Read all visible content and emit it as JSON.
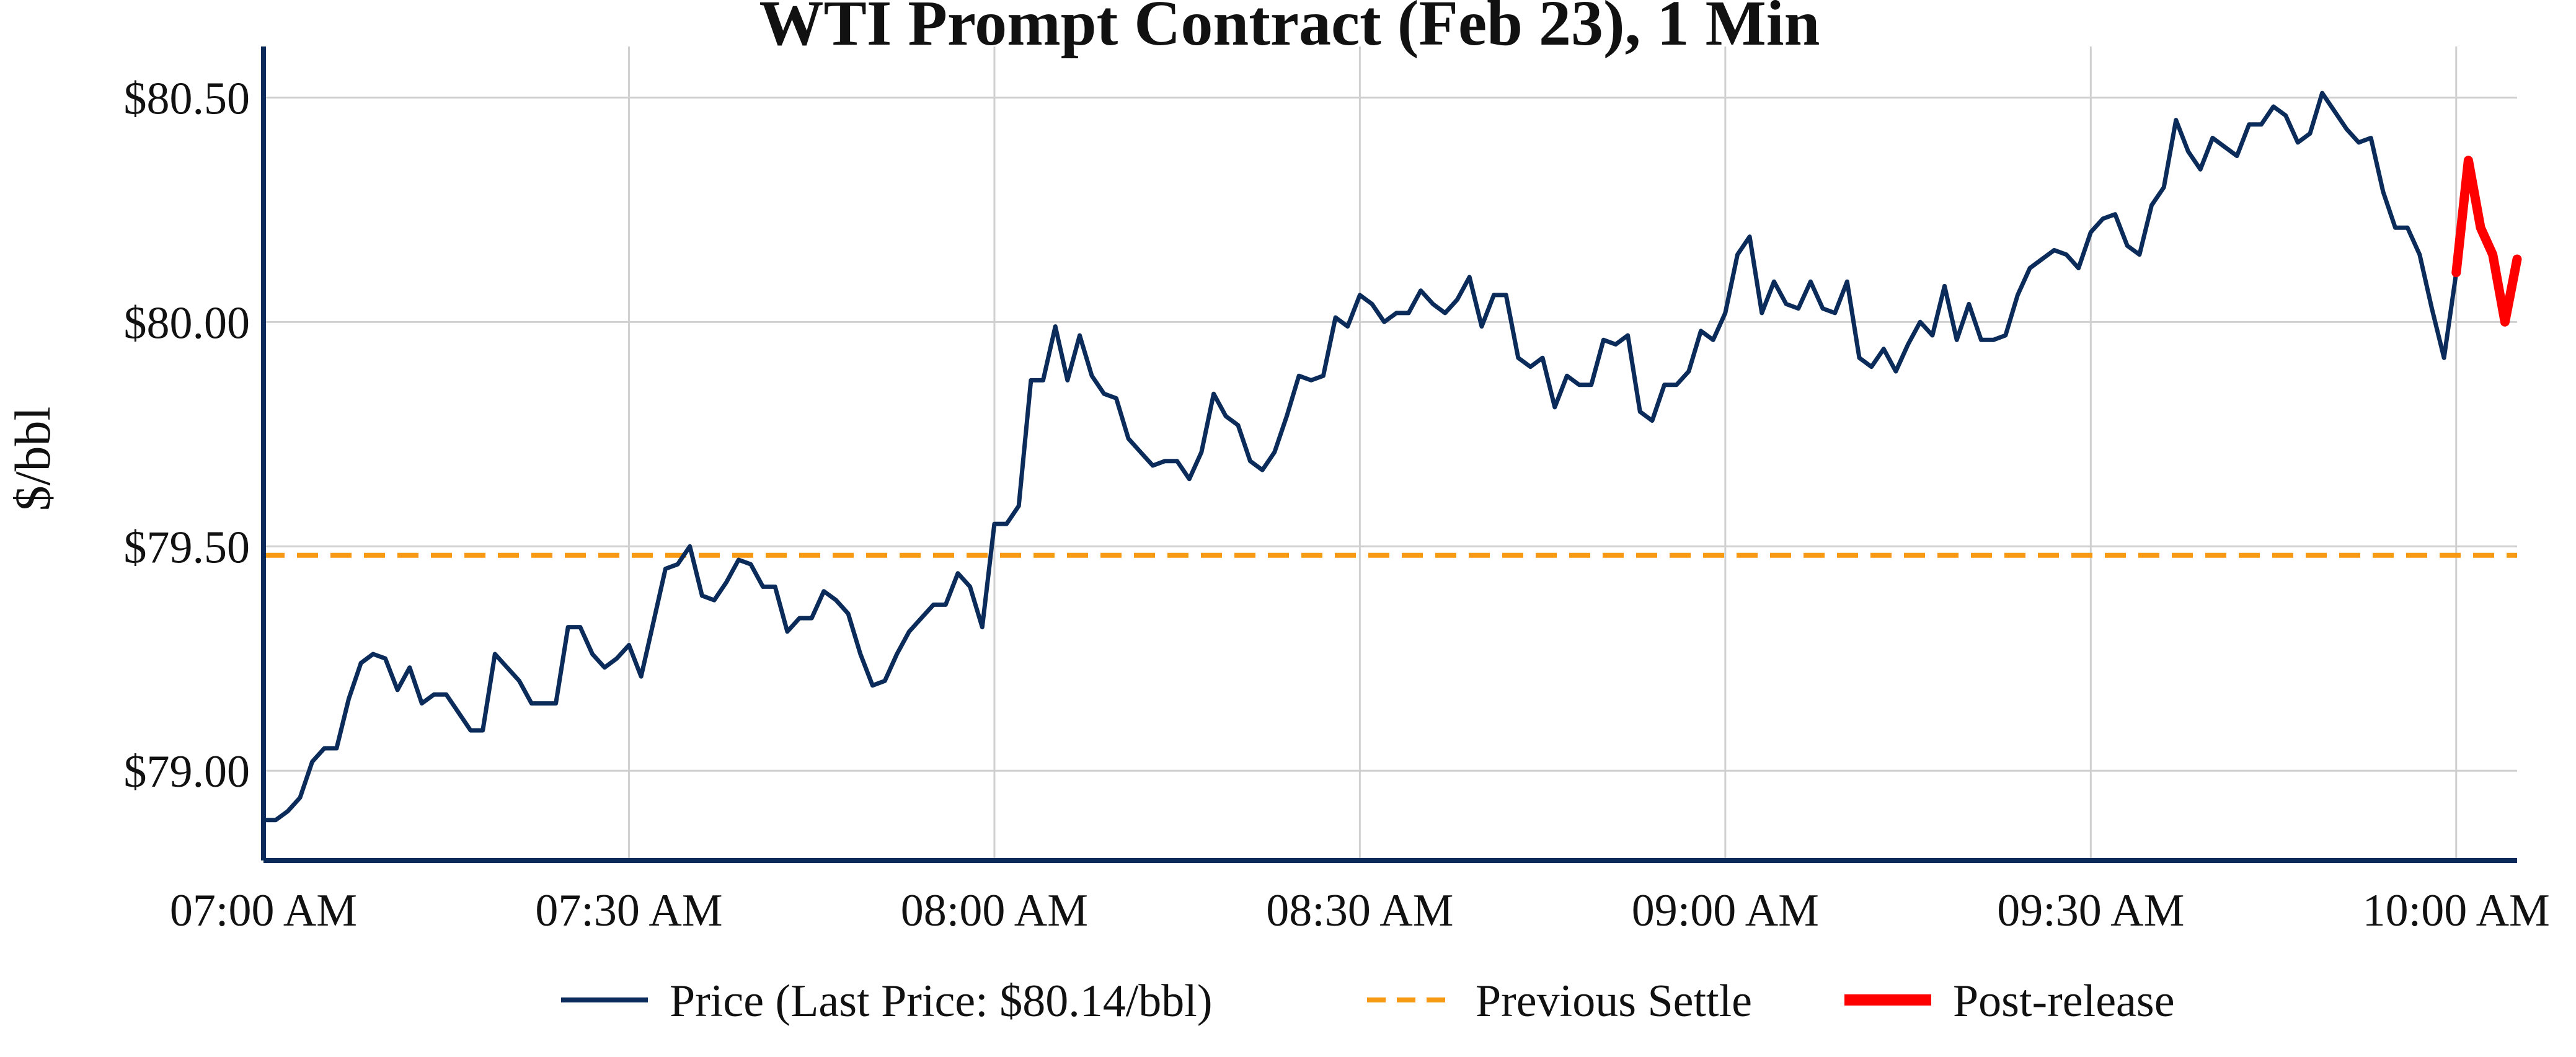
{
  "chart_data": {
    "type": "line",
    "title": "WTI Prompt Contract (Feb 23), 1 Min",
    "xlabel": "",
    "ylabel": "$/bbl",
    "x_ticks": [
      "07:00 AM",
      "07:30 AM",
      "08:00 AM",
      "08:30 AM",
      "09:00 AM",
      "09:30 AM",
      "10:00 AM"
    ],
    "y_ticks": [
      "$79.00",
      "$79.50",
      "$80.00",
      "$80.50"
    ],
    "y_tick_values": [
      79.0,
      79.5,
      80.0,
      80.5
    ],
    "ylim": [
      78.8,
      80.6
    ],
    "xlim": [
      "07:00",
      "10:05"
    ],
    "grid": true,
    "legend_position": "bottom",
    "colors": {
      "price": "#0b2c5a",
      "settle": "#f59a12",
      "post": "#ff0000",
      "grid": "#d0d0d0",
      "axis": "#0b2c5a"
    },
    "legend": [
      {
        "label": "Price (Last Price: $80.14/bbl)",
        "style": "solid",
        "color": "#0b2c5a"
      },
      {
        "label": "Previous Settle",
        "style": "dashed",
        "color": "#f59a12"
      },
      {
        "label": "Post-release",
        "style": "thick",
        "color": "#ff0000"
      }
    ],
    "previous_settle": 79.48,
    "series": [
      {
        "name": "Price (Last Price: $80.14/bbl)",
        "x": [
          "07:00",
          "07:01",
          "07:02",
          "07:03",
          "07:04",
          "07:05",
          "07:06",
          "07:07",
          "07:08",
          "07:09",
          "07:10",
          "07:11",
          "07:12",
          "07:13",
          "07:14",
          "07:15",
          "07:16",
          "07:17",
          "07:18",
          "07:19",
          "07:20",
          "07:21",
          "07:22",
          "07:23",
          "07:24",
          "07:25",
          "07:26",
          "07:27",
          "07:28",
          "07:29",
          "07:30",
          "07:31",
          "07:32",
          "07:33",
          "07:34",
          "07:35",
          "07:36",
          "07:37",
          "07:38",
          "07:39",
          "07:40",
          "07:41",
          "07:42",
          "07:43",
          "07:44",
          "07:45",
          "07:46",
          "07:47",
          "07:48",
          "07:49",
          "07:50",
          "07:51",
          "07:52",
          "07:53",
          "07:54",
          "07:55",
          "07:56",
          "07:57",
          "07:58",
          "07:59",
          "08:00",
          "08:01",
          "08:02",
          "08:03",
          "08:04",
          "08:05",
          "08:06",
          "08:07",
          "08:08",
          "08:09",
          "08:10",
          "08:11",
          "08:12",
          "08:13",
          "08:14",
          "08:15",
          "08:16",
          "08:17",
          "08:18",
          "08:19",
          "08:20",
          "08:21",
          "08:22",
          "08:23",
          "08:24",
          "08:25",
          "08:26",
          "08:27",
          "08:28",
          "08:29",
          "08:30",
          "08:31",
          "08:32",
          "08:33",
          "08:34",
          "08:35",
          "08:36",
          "08:37",
          "08:38",
          "08:39",
          "08:40",
          "08:41",
          "08:42",
          "08:43",
          "08:44",
          "08:45",
          "08:46",
          "08:47",
          "08:48",
          "08:49",
          "08:50",
          "08:51",
          "08:52",
          "08:53",
          "08:54",
          "08:55",
          "08:56",
          "08:57",
          "08:58",
          "08:59",
          "09:00",
          "09:01",
          "09:02",
          "09:03",
          "09:04",
          "09:05",
          "09:06",
          "09:07",
          "09:08",
          "09:09",
          "09:10",
          "09:11",
          "09:12",
          "09:13",
          "09:14",
          "09:15",
          "09:16",
          "09:17",
          "09:18",
          "09:19",
          "09:20",
          "09:21",
          "09:22",
          "09:23",
          "09:24",
          "09:25",
          "09:26",
          "09:27",
          "09:28",
          "09:29",
          "09:30",
          "09:31",
          "09:32",
          "09:33",
          "09:34",
          "09:35",
          "09:36",
          "09:37",
          "09:38",
          "09:39",
          "09:40",
          "09:41",
          "09:42",
          "09:43",
          "09:44",
          "09:45",
          "09:46",
          "09:47",
          "09:48",
          "09:49",
          "09:50",
          "09:51",
          "09:52",
          "09:53",
          "09:54",
          "09:55",
          "09:56",
          "09:57",
          "09:58",
          "09:59",
          "10:00"
        ],
        "values": [
          78.89,
          78.89,
          78.91,
          78.94,
          79.02,
          79.05,
          79.05,
          79.16,
          79.24,
          79.26,
          79.25,
          79.18,
          79.23,
          79.15,
          79.17,
          79.17,
          79.13,
          79.09,
          79.09,
          79.26,
          79.23,
          79.2,
          79.15,
          79.15,
          79.15,
          79.32,
          79.32,
          79.26,
          79.23,
          79.25,
          79.28,
          79.21,
          79.33,
          79.45,
          79.46,
          79.5,
          79.39,
          79.38,
          79.42,
          79.47,
          79.46,
          79.41,
          79.41,
          79.31,
          79.34,
          79.34,
          79.4,
          79.38,
          79.35,
          79.26,
          79.19,
          79.2,
          79.26,
          79.31,
          79.34,
          79.37,
          79.37,
          79.44,
          79.41,
          79.32,
          79.55,
          79.55,
          79.59,
          79.87,
          79.87,
          79.99,
          79.87,
          79.97,
          79.88,
          79.84,
          79.83,
          79.74,
          79.71,
          79.68,
          79.69,
          79.69,
          79.65,
          79.71,
          79.84,
          79.79,
          79.77,
          79.69,
          79.67,
          79.71,
          79.79,
          79.88,
          79.87,
          79.88,
          80.01,
          79.99,
          80.06,
          80.04,
          80.0,
          80.02,
          80.02,
          80.07,
          80.04,
          80.02,
          80.05,
          80.1,
          79.99,
          80.06,
          80.06,
          79.92,
          79.9,
          79.92,
          79.81,
          79.88,
          79.86,
          79.86,
          79.96,
          79.95,
          79.97,
          79.8,
          79.78,
          79.86,
          79.86,
          79.89,
          79.98,
          79.96,
          80.02,
          80.15,
          80.19,
          80.02,
          80.09,
          80.04,
          80.03,
          80.09,
          80.03,
          80.02,
          80.09,
          79.92,
          79.9,
          79.94,
          79.89,
          79.95,
          80.0,
          79.97,
          80.08,
          79.96,
          80.04,
          79.96,
          79.96,
          79.97,
          80.06,
          80.12,
          80.14,
          80.16,
          80.15,
          80.12,
          80.2,
          80.23,
          80.24,
          80.17,
          80.15,
          80.26,
          80.3,
          80.45,
          80.38,
          80.34,
          80.41,
          80.39,
          80.37,
          80.44,
          80.44,
          80.48,
          80.46,
          80.4,
          80.42,
          80.51,
          80.47,
          80.43,
          80.4,
          80.41,
          80.29,
          80.21,
          80.21,
          80.15,
          80.03,
          79.92,
          80.11
        ]
      },
      {
        "name": "Post-release",
        "x": [
          "10:00",
          "10:01",
          "10:02",
          "10:03",
          "10:04",
          "10:05"
        ],
        "values": [
          80.11,
          80.36,
          80.21,
          80.15,
          80.0,
          80.14
        ]
      }
    ]
  }
}
